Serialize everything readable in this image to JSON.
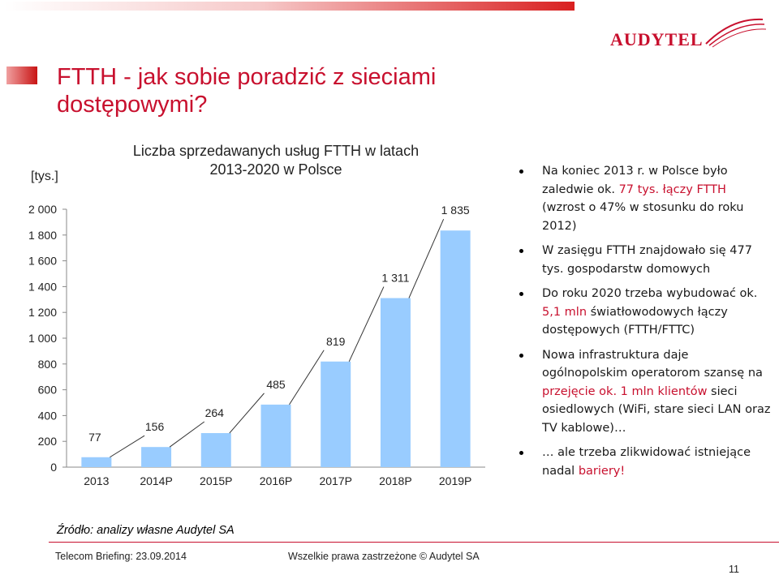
{
  "header": {
    "logo_text": "AUDYTEL",
    "title_line1": "FTTH - jak sobie poradzić z sieciami",
    "title_line2": "dostępowymi?"
  },
  "chart_data": {
    "type": "bar",
    "title_line1": "Liczba sprzedawanych usług FTTH w latach",
    "title_line2": "2013-2020 w Polsce",
    "unit_label": "[tys.]",
    "categories": [
      "2013",
      "2014P",
      "2015P",
      "2016P",
      "2017P",
      "2018P",
      "2019P"
    ],
    "values": [
      77,
      156,
      264,
      485,
      819,
      1311,
      1835
    ],
    "value_labels": [
      "77",
      "156",
      "264",
      "485",
      "819",
      "1 311",
      "1 835"
    ],
    "yticks": [
      0,
      200,
      400,
      600,
      800,
      1000,
      1200,
      1400,
      1600,
      1800,
      2000
    ],
    "ytick_labels": [
      "0",
      "200",
      "400",
      "600",
      "800",
      "1 000",
      "1 200",
      "1 400",
      "1 600",
      "1 800",
      "2 000"
    ],
    "ylim": [
      0,
      2000
    ],
    "bar_color": "#99ccff",
    "grid": false
  },
  "bullets": [
    {
      "parts": [
        {
          "text": "Na koniec 2013 r. w Polsce było zaledwie ok. ",
          "hl": false
        },
        {
          "text": "77 tys. łączy FTTH",
          "hl": true
        },
        {
          "text": " (wzrost o 47% w stosunku do roku 2012)",
          "hl": false
        }
      ]
    },
    {
      "parts": [
        {
          "text": "W zasięgu FTTH znajdowało się 477 tys. gospodarstw domowych",
          "hl": false
        }
      ]
    },
    {
      "parts": [
        {
          "text": "Do roku 2020 trzeba wybudować ok. ",
          "hl": false
        },
        {
          "text": "5,1 mln",
          "hl": true
        },
        {
          "text": " światłowodowych łączy dostępowych (FTTH/FTTC)",
          "hl": false
        }
      ]
    },
    {
      "parts": [
        {
          "text": "Nowa infrastruktura daje ogólnopolskim operatorom szansę na ",
          "hl": false
        },
        {
          "text": "przejęcie ok. 1 mln klientów",
          "hl": true
        },
        {
          "text": " sieci osiedlowych (WiFi, stare sieci LAN oraz TV kablowe)…",
          "hl": false
        }
      ]
    },
    {
      "parts": [
        {
          "text": "… ale trzeba zlikwidować istniejące nadal ",
          "hl": false
        },
        {
          "text": "bariery!",
          "hl": true
        }
      ]
    }
  ],
  "footer": {
    "source": "Źródło: analizy własne Audytel SA",
    "left": "Telecom Briefing: 23.09.2014",
    "middle": "Wszelkie prawa zastrzeżone © Audytel  SA",
    "page": "11"
  },
  "colors": {
    "accent": "#c8102e",
    "bar": "#99ccff",
    "text": "#1a1a1a"
  }
}
